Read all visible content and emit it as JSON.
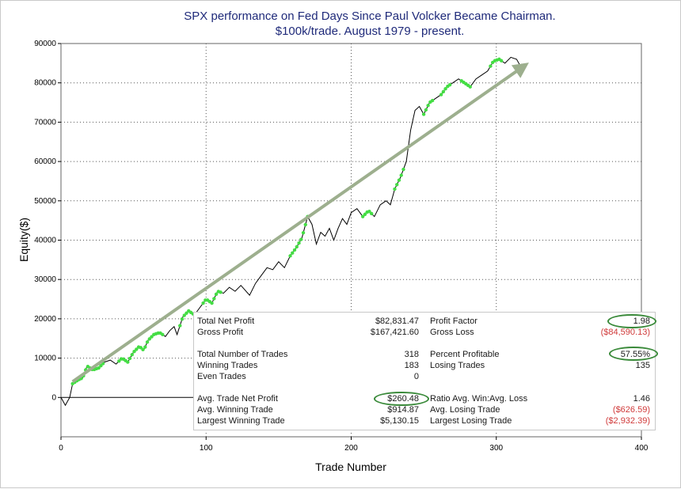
{
  "chart_data": {
    "type": "line",
    "title": "SPX performance on Fed Days Since Paul Volcker Became Chairman.",
    "subtitle": "$100k/trade. August 1979 - present.",
    "xlabel": "Trade Number",
    "ylabel": "Equity($)",
    "xlim": [
      0,
      400
    ],
    "ylim": [
      -10000,
      90000
    ],
    "x_ticks": [
      0,
      100,
      200,
      300,
      400
    ],
    "y_ticks": [
      0,
      10000,
      20000,
      30000,
      40000,
      50000,
      60000,
      70000,
      80000,
      90000
    ],
    "grid": true,
    "series": [
      {
        "name": "Equity",
        "color": "#000000",
        "points": [
          [
            0,
            0
          ],
          [
            3,
            -2000
          ],
          [
            6,
            0
          ],
          [
            8,
            3500
          ],
          [
            12,
            4500
          ],
          [
            15,
            5000
          ],
          [
            18,
            8000
          ],
          [
            22,
            7000
          ],
          [
            26,
            7500
          ],
          [
            30,
            9000
          ],
          [
            34,
            9500
          ],
          [
            38,
            8500
          ],
          [
            42,
            10000
          ],
          [
            46,
            9000
          ],
          [
            50,
            11500
          ],
          [
            54,
            13000
          ],
          [
            57,
            12000
          ],
          [
            60,
            14500
          ],
          [
            64,
            16000
          ],
          [
            68,
            16500
          ],
          [
            72,
            15500
          ],
          [
            75,
            17000
          ],
          [
            78,
            18000
          ],
          [
            80,
            16000
          ],
          [
            84,
            20500
          ],
          [
            88,
            22000
          ],
          [
            92,
            21000
          ],
          [
            96,
            23000
          ],
          [
            100,
            25000
          ],
          [
            104,
            24000
          ],
          [
            108,
            27000
          ],
          [
            112,
            26500
          ],
          [
            116,
            28000
          ],
          [
            120,
            27000
          ],
          [
            124,
            28500
          ],
          [
            130,
            26000
          ],
          [
            134,
            29000
          ],
          [
            138,
            31000
          ],
          [
            142,
            33000
          ],
          [
            146,
            32500
          ],
          [
            150,
            34500
          ],
          [
            154,
            33000
          ],
          [
            158,
            36000
          ],
          [
            162,
            38000
          ],
          [
            166,
            40500
          ],
          [
            170,
            46000
          ],
          [
            173,
            44000
          ],
          [
            176,
            39000
          ],
          [
            179,
            42000
          ],
          [
            182,
            41000
          ],
          [
            185,
            43000
          ],
          [
            188,
            40000
          ],
          [
            191,
            43000
          ],
          [
            194,
            45500
          ],
          [
            197,
            44000
          ],
          [
            200,
            47000
          ],
          [
            204,
            48000
          ],
          [
            208,
            46000
          ],
          [
            212,
            47500
          ],
          [
            216,
            46000
          ],
          [
            220,
            49000
          ],
          [
            224,
            50000
          ],
          [
            227,
            49000
          ],
          [
            230,
            53000
          ],
          [
            234,
            56000
          ],
          [
            238,
            60000
          ],
          [
            241,
            68000
          ],
          [
            244,
            73000
          ],
          [
            247,
            74000
          ],
          [
            250,
            72000
          ],
          [
            254,
            75000
          ],
          [
            258,
            76000
          ],
          [
            262,
            77000
          ],
          [
            266,
            79000
          ],
          [
            270,
            80000
          ],
          [
            274,
            81000
          ],
          [
            278,
            80000
          ],
          [
            282,
            79000
          ],
          [
            286,
            81000
          ],
          [
            290,
            82000
          ],
          [
            294,
            83000
          ],
          [
            298,
            85500
          ],
          [
            302,
            86000
          ],
          [
            306,
            85000
          ],
          [
            310,
            86500
          ],
          [
            314,
            86000
          ],
          [
            317,
            84000
          ],
          [
            318,
            82800
          ]
        ]
      }
    ],
    "winning_segments": [
      [
        8,
        30
      ],
      [
        40,
        70
      ],
      [
        82,
        92
      ],
      [
        98,
        110
      ],
      [
        158,
        170
      ],
      [
        208,
        214
      ],
      [
        230,
        236
      ],
      [
        250,
        256
      ],
      [
        262,
        268
      ],
      [
        276,
        282
      ],
      [
        296,
        304
      ]
    ],
    "trend_arrow": {
      "from": [
        8,
        4000
      ],
      "to": [
        318,
        84000
      ],
      "color": "#9daf8e"
    }
  },
  "stats": {
    "rows": [
      {
        "l1": "Total Net Profit",
        "v1": "$82,831.47",
        "l2": "Profit Factor",
        "v2": "1.98"
      },
      {
        "l1": "Gross Profit",
        "v1": "$167,421.60",
        "l2": "Gross Loss",
        "v2": "($84,590.13)"
      },
      {
        "l1": "Total Number of Trades",
        "v1": "318",
        "l2": "Percent Profitable",
        "v2": "57.55%"
      },
      {
        "l1": "Winning Trades",
        "v1": "183",
        "l2": "Losing Trades",
        "v2": "135"
      },
      {
        "l1": "Even Trades",
        "v1": "0",
        "l2": "",
        "v2": ""
      },
      {
        "l1": "Avg. Trade Net Profit",
        "v1": "$260.48",
        "l2": "Ratio Avg. Win:Avg. Loss",
        "v2": "1.46"
      },
      {
        "l1": "Avg. Winning Trade",
        "v1": "$914.87",
        "l2": "Avg. Losing Trade",
        "v2": "($626.59)"
      },
      {
        "l1": "Largest Winning Trade",
        "v1": "$5,130.15",
        "l2": "Largest Losing Trade",
        "v2": "($2,932.39)"
      }
    ]
  },
  "colors": {
    "winning": "#44dd44",
    "negative": "#d03a3a",
    "highlight": "#3a8a3a",
    "title": "#1f2a7a"
  }
}
